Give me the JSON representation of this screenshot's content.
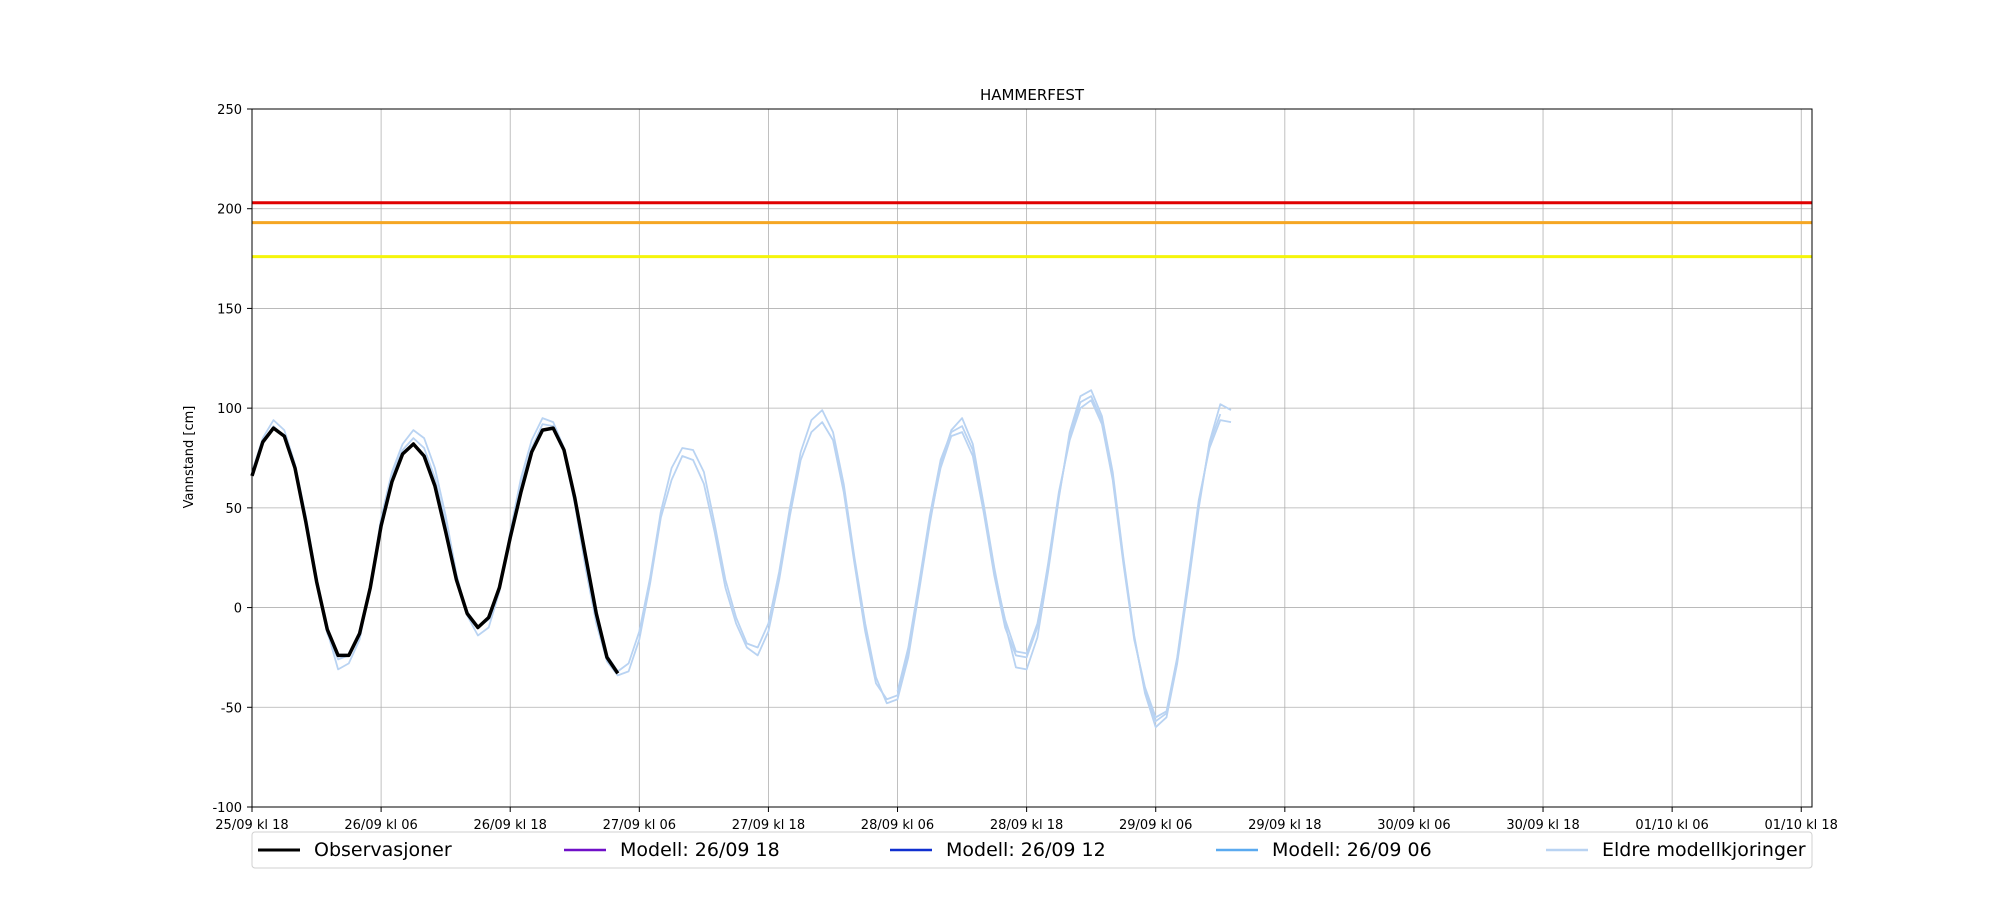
{
  "chart_data": {
    "type": "line",
    "title": "HAMMERFEST",
    "ylabel": "Vannstand [cm]",
    "xlabel": "",
    "ylim": [
      -100,
      250
    ],
    "yticks": [
      -100,
      -50,
      0,
      50,
      100,
      150,
      200,
      250
    ],
    "xlim": [
      0,
      145
    ],
    "xticks": [
      {
        "x": 0,
        "label": "25/09 kl 18"
      },
      {
        "x": 12,
        "label": "26/09 kl 06"
      },
      {
        "x": 24,
        "label": "26/09 kl 18"
      },
      {
        "x": 36,
        "label": "27/09 kl 06"
      },
      {
        "x": 48,
        "label": "27/09 kl 18"
      },
      {
        "x": 60,
        "label": "28/09 kl 06"
      },
      {
        "x": 72,
        "label": "28/09 kl 18"
      },
      {
        "x": 84,
        "label": "29/09 kl 06"
      },
      {
        "x": 96,
        "label": "29/09 kl 18"
      },
      {
        "x": 108,
        "label": "30/09 kl 06"
      },
      {
        "x": 120,
        "label": "30/09 kl 18"
      },
      {
        "x": 132,
        "label": "01/10 kl 06"
      },
      {
        "x": 144,
        "label": "01/10 kl 18"
      }
    ],
    "grid": true,
    "legend_position": "bottom",
    "threshold_lines": [
      {
        "y": 203,
        "color": "#e00000"
      },
      {
        "y": 193,
        "color": "#f5a623"
      },
      {
        "y": 176,
        "color": "#f5f50a"
      }
    ],
    "series": [
      {
        "name": "Eldre modellkjoringer",
        "color": "#b9d3f2",
        "values": [
          [
            0,
            68
          ],
          [
            1,
            85
          ],
          [
            2,
            94
          ],
          [
            3,
            89
          ],
          [
            4,
            72
          ],
          [
            5,
            46
          ],
          [
            6,
            15
          ],
          [
            7,
            -12
          ],
          [
            8,
            -31
          ],
          [
            9,
            -28
          ],
          [
            10,
            -16
          ],
          [
            11,
            10
          ],
          [
            12,
            45
          ],
          [
            13,
            68
          ],
          [
            14,
            82
          ],
          [
            15,
            89
          ],
          [
            16,
            85
          ],
          [
            17,
            70
          ],
          [
            18,
            46
          ],
          [
            19,
            17
          ],
          [
            20,
            -4
          ],
          [
            21,
            -14
          ],
          [
            22,
            -10
          ],
          [
            23,
            8
          ],
          [
            24,
            38
          ],
          [
            25,
            65
          ],
          [
            26,
            84
          ],
          [
            27,
            95
          ],
          [
            28,
            93
          ],
          [
            29,
            80
          ],
          [
            30,
            55
          ],
          [
            31,
            24
          ],
          [
            32,
            -5
          ],
          [
            33,
            -24
          ],
          [
            34,
            -32
          ],
          [
            35,
            -28
          ],
          [
            36,
            -12
          ],
          [
            37,
            15
          ],
          [
            38,
            48
          ],
          [
            39,
            70
          ],
          [
            40,
            80
          ],
          [
            41,
            79
          ],
          [
            42,
            68
          ],
          [
            43,
            42
          ],
          [
            44,
            14
          ],
          [
            45,
            -5
          ],
          [
            46,
            -18
          ],
          [
            47,
            -20
          ],
          [
            48,
            -8
          ],
          [
            49,
            18
          ],
          [
            50,
            50
          ],
          [
            51,
            78
          ],
          [
            52,
            94
          ],
          [
            53,
            99
          ],
          [
            54,
            88
          ],
          [
            55,
            62
          ],
          [
            56,
            25
          ],
          [
            57,
            -8
          ],
          [
            58,
            -35
          ],
          [
            59,
            -48
          ],
          [
            60,
            -46
          ],
          [
            61,
            -25
          ],
          [
            62,
            8
          ],
          [
            63,
            42
          ],
          [
            64,
            72
          ],
          [
            65,
            89
          ],
          [
            66,
            95
          ],
          [
            67,
            82
          ],
          [
            68,
            52
          ],
          [
            69,
            20
          ],
          [
            70,
            -8
          ],
          [
            71,
            -30
          ],
          [
            72,
            -31
          ],
          [
            73,
            -15
          ],
          [
            74,
            18
          ],
          [
            75,
            55
          ],
          [
            76,
            88
          ],
          [
            77,
            106
          ],
          [
            78,
            109
          ],
          [
            79,
            96
          ],
          [
            80,
            68
          ],
          [
            81,
            25
          ],
          [
            82,
            -14
          ],
          [
            83,
            -43
          ],
          [
            84,
            -60
          ],
          [
            85,
            -55
          ],
          [
            86,
            -28
          ],
          [
            87,
            10
          ],
          [
            88,
            50
          ],
          [
            89,
            83
          ],
          [
            90,
            102
          ],
          [
            91,
            99
          ]
        ]
      },
      {
        "name": "",
        "color": "#b9d3f2",
        "values": [
          [
            0,
            66
          ],
          [
            1,
            83
          ],
          [
            2,
            91
          ],
          [
            3,
            86
          ],
          [
            4,
            70
          ],
          [
            5,
            44
          ],
          [
            6,
            12
          ],
          [
            7,
            -13
          ],
          [
            8,
            -26
          ],
          [
            9,
            -24
          ],
          [
            10,
            -12
          ],
          [
            11,
            11
          ],
          [
            12,
            44
          ],
          [
            13,
            66
          ],
          [
            14,
            79
          ],
          [
            15,
            85
          ],
          [
            16,
            80
          ],
          [
            17,
            65
          ],
          [
            18,
            42
          ],
          [
            19,
            14
          ],
          [
            20,
            -2
          ],
          [
            21,
            -10
          ],
          [
            22,
            -6
          ],
          [
            23,
            9
          ],
          [
            24,
            36
          ],
          [
            25,
            62
          ],
          [
            26,
            80
          ],
          [
            27,
            92
          ],
          [
            28,
            91
          ],
          [
            29,
            78
          ],
          [
            30,
            52
          ],
          [
            31,
            20
          ],
          [
            32,
            -8
          ],
          [
            33,
            -27
          ],
          [
            34,
            -34
          ],
          [
            35,
            -32
          ],
          [
            36,
            -16
          ],
          [
            37,
            12
          ],
          [
            38,
            45
          ],
          [
            39,
            64
          ],
          [
            40,
            76
          ],
          [
            41,
            74
          ],
          [
            42,
            62
          ],
          [
            43,
            38
          ],
          [
            44,
            10
          ],
          [
            45,
            -8
          ],
          [
            46,
            -20
          ],
          [
            47,
            -24
          ],
          [
            48,
            -12
          ],
          [
            49,
            14
          ],
          [
            50,
            46
          ],
          [
            51,
            74
          ],
          [
            52,
            88
          ],
          [
            53,
            93
          ],
          [
            54,
            84
          ],
          [
            55,
            58
          ],
          [
            56,
            22
          ],
          [
            57,
            -12
          ],
          [
            58,
            -38
          ],
          [
            59,
            -46
          ],
          [
            60,
            -44
          ],
          [
            61,
            -22
          ],
          [
            62,
            10
          ],
          [
            63,
            44
          ],
          [
            64,
            70
          ],
          [
            65,
            86
          ],
          [
            66,
            88
          ],
          [
            67,
            76
          ],
          [
            68,
            48
          ],
          [
            69,
            16
          ],
          [
            70,
            -10
          ],
          [
            71,
            -24
          ],
          [
            72,
            -25
          ],
          [
            73,
            -10
          ],
          [
            74,
            22
          ],
          [
            75,
            58
          ],
          [
            76,
            84
          ],
          [
            77,
            100
          ],
          [
            78,
            104
          ],
          [
            79,
            92
          ],
          [
            80,
            64
          ],
          [
            81,
            22
          ],
          [
            82,
            -16
          ],
          [
            83,
            -40
          ],
          [
            84,
            -55
          ],
          [
            85,
            -52
          ],
          [
            86,
            -25
          ],
          [
            87,
            14
          ],
          [
            88,
            54
          ],
          [
            89,
            80
          ],
          [
            90,
            94
          ],
          [
            91,
            93
          ]
        ]
      },
      {
        "name": "",
        "color": "#b9d3f2",
        "values": [
          [
            60,
            -42
          ],
          [
            61,
            -20
          ],
          [
            62,
            12
          ],
          [
            63,
            46
          ],
          [
            64,
            74
          ],
          [
            65,
            88
          ],
          [
            66,
            91
          ],
          [
            67,
            79
          ],
          [
            68,
            50
          ],
          [
            69,
            18
          ],
          [
            70,
            -6
          ],
          [
            71,
            -22
          ],
          [
            72,
            -23
          ],
          [
            73,
            -8
          ],
          [
            74,
            20
          ],
          [
            75,
            56
          ],
          [
            76,
            86
          ],
          [
            77,
            103
          ],
          [
            78,
            106
          ],
          [
            79,
            94
          ],
          [
            80,
            66
          ],
          [
            81,
            24
          ],
          [
            82,
            -15
          ],
          [
            83,
            -42
          ],
          [
            84,
            -57
          ],
          [
            85,
            -53
          ],
          [
            86,
            -26
          ],
          [
            87,
            12
          ],
          [
            88,
            52
          ],
          [
            89,
            82
          ],
          [
            90,
            97
          ]
        ]
      },
      {
        "name": "Modell: 26/09 06",
        "color": "#5aaaf0",
        "values": []
      },
      {
        "name": "Modell: 26/09 12",
        "color": "#1030d0",
        "values": []
      },
      {
        "name": "Modell: 26/09 18",
        "color": "#7010c8",
        "values": []
      },
      {
        "name": "Observasjoner",
        "color": "#000000",
        "values": [
          [
            0,
            66
          ],
          [
            1,
            83
          ],
          [
            2,
            90
          ],
          [
            3,
            86
          ],
          [
            4,
            70
          ],
          [
            5,
            43
          ],
          [
            6,
            13
          ],
          [
            7,
            -11
          ],
          [
            8,
            -24
          ],
          [
            9,
            -24
          ],
          [
            10,
            -13
          ],
          [
            11,
            10
          ],
          [
            12,
            41
          ],
          [
            13,
            63
          ],
          [
            14,
            77
          ],
          [
            15,
            82
          ],
          [
            16,
            76
          ],
          [
            17,
            61
          ],
          [
            18,
            38
          ],
          [
            19,
            14
          ],
          [
            20,
            -3
          ],
          [
            21,
            -10
          ],
          [
            22,
            -5
          ],
          [
            23,
            10
          ],
          [
            24,
            35
          ],
          [
            25,
            58
          ],
          [
            26,
            78
          ],
          [
            27,
            89
          ],
          [
            28,
            90
          ],
          [
            29,
            79
          ],
          [
            30,
            55
          ],
          [
            31,
            26
          ],
          [
            32,
            -3
          ],
          [
            33,
            -25
          ],
          [
            34,
            -33
          ]
        ]
      }
    ]
  },
  "legend": {
    "items": [
      {
        "label": "Observasjoner",
        "color": "#000000"
      },
      {
        "label": "Modell: 26/09 18",
        "color": "#7010c8"
      },
      {
        "label": "Modell: 26/09 12",
        "color": "#1030d0"
      },
      {
        "label": "Modell: 26/09 06",
        "color": "#5aaaf0"
      },
      {
        "label": "Eldre modellkjoringer",
        "color": "#b9d3f2"
      }
    ]
  }
}
